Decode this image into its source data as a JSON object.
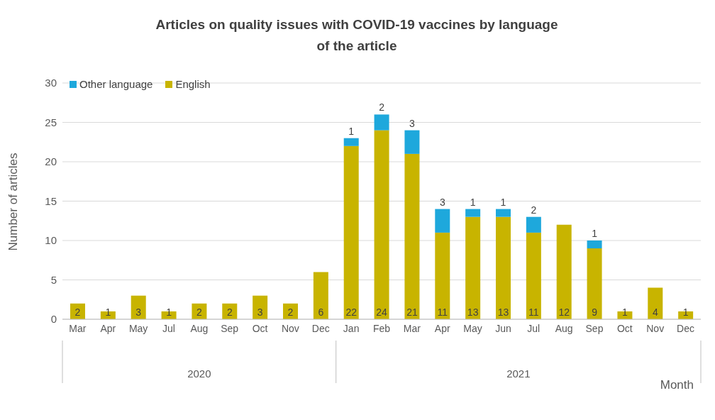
{
  "chart_data": {
    "type": "bar",
    "title": "Articles on quality issues with COVID-19 vaccines by language of the article",
    "xlabel": "Month",
    "ylabel": "Number of articles",
    "categories": [
      "Mar",
      "Apr",
      "May",
      "Jul",
      "Aug",
      "Sep",
      "Oct",
      "Nov",
      "Dec",
      "Jan",
      "Feb",
      "Mar",
      "Apr",
      "May",
      "Jun",
      "Jul",
      "Aug",
      "Sep",
      "Oct",
      "Nov",
      "Dec"
    ],
    "series": [
      {
        "name": "English",
        "color": "#c8b400",
        "values": [
          2,
          1,
          3,
          1,
          2,
          2,
          3,
          2,
          6,
          22,
          24,
          21,
          11,
          13,
          13,
          11,
          12,
          9,
          1,
          4,
          1
        ]
      },
      {
        "name": "Other language",
        "color": "#1ea8dc",
        "values": [
          null,
          null,
          null,
          null,
          null,
          null,
          null,
          null,
          null,
          1,
          2,
          3,
          3,
          1,
          1,
          2,
          null,
          1,
          null,
          null,
          null
        ]
      }
    ],
    "stacked": true,
    "ylim": [
      0,
      30
    ],
    "yticks": [
      0,
      5,
      10,
      15,
      20,
      25,
      30
    ],
    "grid": "y",
    "legend": "top left",
    "data_labels": true,
    "annotations": [
      "2020",
      "2021"
    ]
  }
}
